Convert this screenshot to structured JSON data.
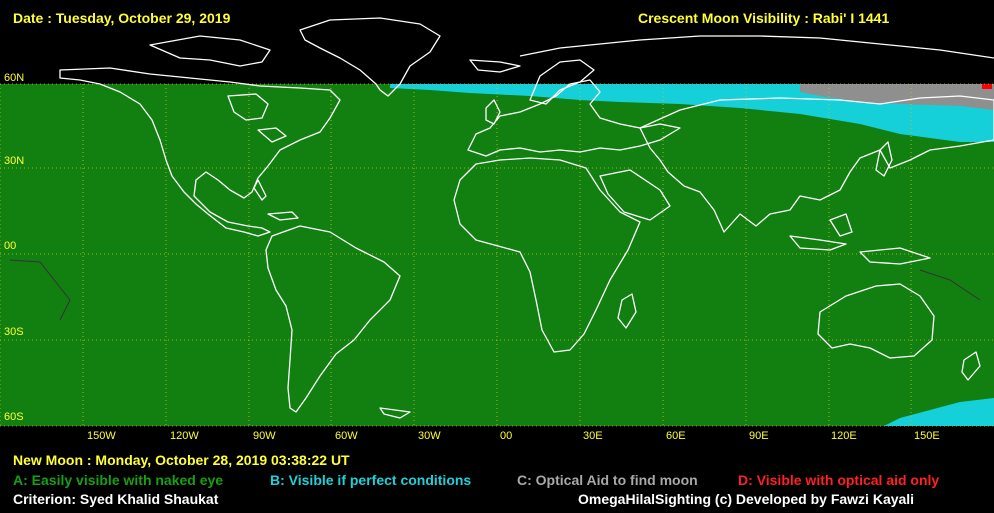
{
  "header": {
    "date_label": "Date : Tuesday, October 29, 2019",
    "title": "Crescent Moon Visibility : Rabi' I  1441"
  },
  "map": {
    "lat_labels": [
      "60N",
      "30N",
      "00",
      "30S",
      "60S"
    ],
    "lon_labels": [
      "150W",
      "120W",
      "90W",
      "60W",
      "30W",
      "00",
      "30E",
      "60E",
      "90E",
      "120E",
      "150E"
    ],
    "zone_colors": {
      "A": "#118011",
      "B": "#15d0d8",
      "C": "#8f8f8f",
      "D": "#ff0000"
    }
  },
  "footer": {
    "new_moon": "New Moon : Monday, October 28, 2019  03:38:22  UT",
    "legend": [
      {
        "code": "A",
        "label": "A: Easily visible with naked eye",
        "color": "#15a015"
      },
      {
        "code": "B",
        "label": "B: Visible if perfect conditions",
        "color": "#20d0d8"
      },
      {
        "code": "C",
        "label": "C: Optical Aid to find moon",
        "color": "#a8a8a8"
      },
      {
        "code": "D",
        "label": "D: Visible with optical aid only",
        "color": "#ff2020"
      }
    ],
    "criterion": "Criterion: Syed Khalid Shaukat",
    "credit": "OmegaHilalSighting  (c)  Developed by Fawzi Kayali"
  }
}
